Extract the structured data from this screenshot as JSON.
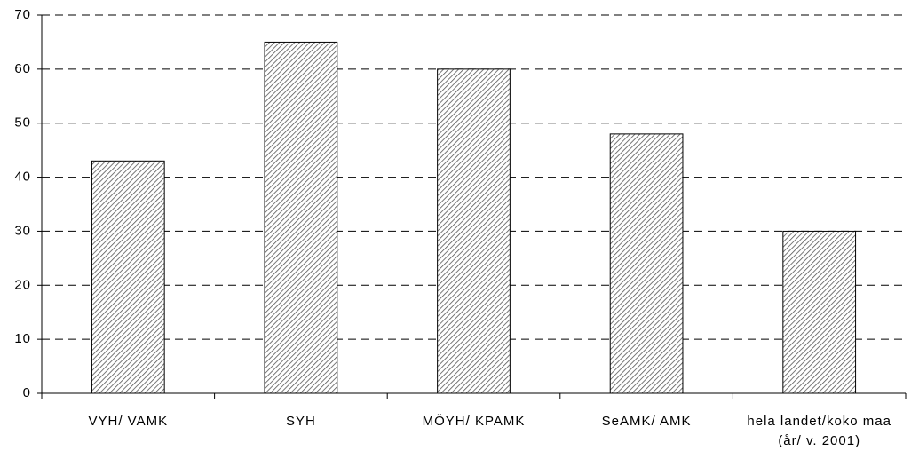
{
  "chart_data": {
    "type": "bar",
    "categories": [
      "VYH/ VAMK",
      "SYH",
      "MÖYH/ KPAMK",
      "SeAMK/ AMK",
      "hela landet/koko maa (år/ v. 2001)"
    ],
    "values": [
      43,
      65,
      60,
      48,
      30
    ],
    "ylim": [
      0,
      70
    ],
    "yticks": [
      0,
      10,
      20,
      30,
      40,
      50,
      60,
      70
    ],
    "grid": true
  }
}
